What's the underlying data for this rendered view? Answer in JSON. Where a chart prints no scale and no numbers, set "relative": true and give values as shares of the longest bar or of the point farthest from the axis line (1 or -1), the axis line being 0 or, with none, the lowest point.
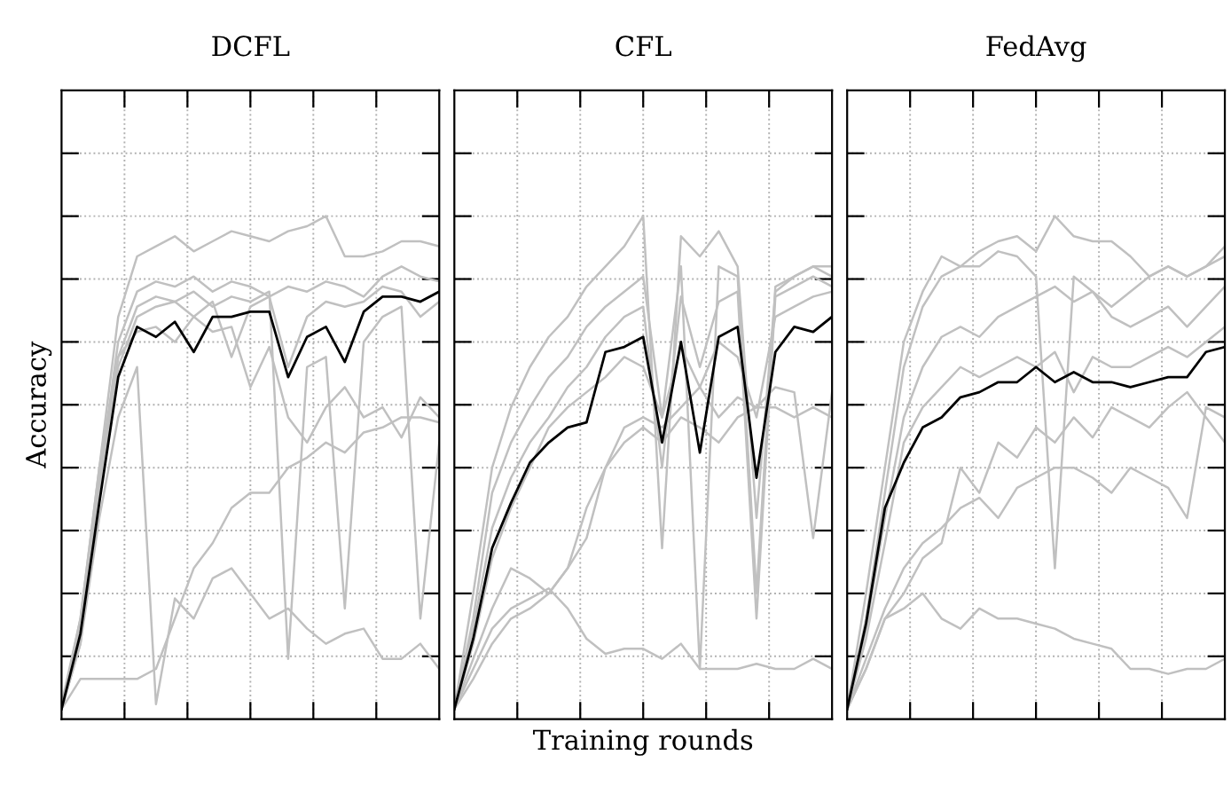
{
  "chart_data": [
    {
      "type": "line",
      "title": "DCFL",
      "ylabel": "Accuracy",
      "relative": true,
      "grid": true,
      "tick_labels": false,
      "line_style": "solid",
      "marker": "none",
      "categories": [
        null,
        null,
        null,
        null,
        null,
        null,
        null,
        null,
        null,
        null,
        null,
        null,
        null,
        null,
        null,
        null,
        null,
        null,
        null,
        null,
        null
      ],
      "series": [
        {
          "color": "#c0c0c0",
          "values": [
            0.02,
            0.2,
            0.5,
            0.8,
            0.92,
            0.94,
            0.96,
            0.93,
            0.95,
            0.97,
            0.96,
            0.95,
            0.97,
            0.98,
            1.0,
            0.92,
            0.92,
            0.93,
            0.95,
            0.95,
            0.94
          ]
        },
        {
          "color": "#c0c0c0",
          "values": [
            0.03,
            0.18,
            0.48,
            0.75,
            0.85,
            0.87,
            0.86,
            0.88,
            0.85,
            0.87,
            0.86,
            0.84,
            0.86,
            0.85,
            0.87,
            0.86,
            0.84,
            0.88,
            0.9,
            0.88,
            0.87
          ]
        },
        {
          "color": "#c0c0c0",
          "values": [
            0.02,
            0.15,
            0.45,
            0.7,
            0.8,
            0.82,
            0.83,
            0.8,
            0.83,
            0.72,
            0.82,
            0.84,
            0.7,
            0.8,
            0.83,
            0.82,
            0.83,
            0.86,
            0.85,
            0.8,
            0.83
          ]
        },
        {
          "color": "#c0c0c0",
          "values": [
            0.02,
            0.15,
            0.4,
            0.6,
            0.7,
            0.03,
            0.24,
            0.2,
            0.28,
            0.3,
            0.25,
            0.2,
            0.22,
            0.18,
            0.15,
            0.17,
            0.18,
            0.12,
            0.12,
            0.15,
            0.1
          ]
        },
        {
          "color": "#c0c0c0",
          "values": [
            0.02,
            0.08,
            0.08,
            0.08,
            0.08,
            0.1,
            0.2,
            0.3,
            0.35,
            0.42,
            0.45,
            0.45,
            0.5,
            0.52,
            0.55,
            0.53,
            0.57,
            0.58,
            0.6,
            0.6,
            0.59
          ]
        },
        {
          "color": "#c0c0c0",
          "values": [
            0.02,
            0.17,
            0.46,
            0.72,
            0.82,
            0.84,
            0.83,
            0.85,
            0.82,
            0.84,
            0.83,
            0.85,
            0.12,
            0.7,
            0.72,
            0.22,
            0.75,
            0.8,
            0.82,
            0.2,
            0.55
          ]
        },
        {
          "color": "#c0c0c0",
          "values": [
            0.03,
            0.2,
            0.5,
            0.72,
            0.77,
            0.78,
            0.75,
            0.8,
            0.77,
            0.78,
            0.66,
            0.74,
            0.6,
            0.55,
            0.62,
            0.66,
            0.6,
            0.62,
            0.56,
            0.64,
            0.6
          ]
        },
        {
          "color": "#000000",
          "values": [
            0.02,
            0.17,
            0.43,
            0.68,
            0.78,
            0.76,
            0.79,
            0.73,
            0.8,
            0.8,
            0.81,
            0.81,
            0.68,
            0.76,
            0.78,
            0.71,
            0.81,
            0.84,
            0.84,
            0.83,
            0.85
          ]
        }
      ]
    },
    {
      "type": "line",
      "title": "CFL",
      "xlabel": "Training rounds",
      "relative": true,
      "grid": true,
      "tick_labels": false,
      "line_style": "solid",
      "marker": "none",
      "categories": [
        null,
        null,
        null,
        null,
        null,
        null,
        null,
        null,
        null,
        null,
        null,
        null,
        null,
        null,
        null,
        null,
        null,
        null,
        null,
        null,
        null
      ],
      "series": [
        {
          "color": "#c0c0c0",
          "values": [
            0.02,
            0.25,
            0.5,
            0.62,
            0.7,
            0.76,
            0.8,
            0.86,
            0.9,
            0.94,
            1.0,
            0.34,
            0.96,
            0.92,
            0.97,
            0.9,
            0.4,
            0.85,
            0.88,
            0.9,
            0.9
          ]
        },
        {
          "color": "#c0c0c0",
          "values": [
            0.02,
            0.2,
            0.45,
            0.55,
            0.62,
            0.68,
            0.72,
            0.78,
            0.82,
            0.85,
            0.88,
            0.6,
            0.9,
            0.1,
            0.9,
            0.88,
            0.25,
            0.86,
            0.88,
            0.9,
            0.88
          ]
        },
        {
          "color": "#c0c0c0",
          "values": [
            0.03,
            0.18,
            0.38,
            0.48,
            0.55,
            0.6,
            0.66,
            0.7,
            0.76,
            0.8,
            0.82,
            0.5,
            0.84,
            0.7,
            0.83,
            0.85,
            0.2,
            0.84,
            0.86,
            0.88,
            0.86
          ]
        },
        {
          "color": "#c0c0c0",
          "values": [
            0.02,
            0.1,
            0.18,
            0.22,
            0.24,
            0.26,
            0.22,
            0.16,
            0.13,
            0.14,
            0.14,
            0.12,
            0.15,
            0.1,
            0.1,
            0.1,
            0.11,
            0.1,
            0.1,
            0.12,
            0.1
          ]
        },
        {
          "color": "#c0c0c0",
          "values": [
            0.02,
            0.08,
            0.15,
            0.2,
            0.22,
            0.25,
            0.3,
            0.36,
            0.5,
            0.55,
            0.58,
            0.55,
            0.6,
            0.58,
            0.55,
            0.6,
            0.62,
            0.62,
            0.6,
            0.62,
            0.6
          ]
        },
        {
          "color": "#c0c0c0",
          "values": [
            0.02,
            0.12,
            0.22,
            0.3,
            0.28,
            0.25,
            0.3,
            0.42,
            0.5,
            0.58,
            0.6,
            0.58,
            0.62,
            0.66,
            0.6,
            0.64,
            0.62,
            0.66,
            0.65,
            0.36,
            0.65
          ]
        },
        {
          "color": "#c0c0c0",
          "values": [
            0.02,
            0.15,
            0.32,
            0.42,
            0.5,
            0.58,
            0.62,
            0.65,
            0.68,
            0.72,
            0.7,
            0.6,
            0.74,
            0.66,
            0.75,
            0.72,
            0.6,
            0.8,
            0.82,
            0.84,
            0.85
          ]
        },
        {
          "color": "#000000",
          "values": [
            0.02,
            0.16,
            0.34,
            0.43,
            0.51,
            0.55,
            0.58,
            0.59,
            0.73,
            0.74,
            0.76,
            0.55,
            0.75,
            0.53,
            0.76,
            0.78,
            0.48,
            0.73,
            0.78,
            0.77,
            0.8
          ]
        }
      ]
    },
    {
      "type": "line",
      "title": "FedAvg",
      "relative": true,
      "grid": true,
      "tick_labels": false,
      "line_style": "solid",
      "marker": "none",
      "categories": [
        null,
        null,
        null,
        null,
        null,
        null,
        null,
        null,
        null,
        null,
        null,
        null,
        null,
        null,
        null,
        null,
        null,
        null,
        null,
        null,
        null
      ],
      "series": [
        {
          "color": "#c0c0c0",
          "values": [
            0.02,
            0.25,
            0.5,
            0.75,
            0.85,
            0.92,
            0.9,
            0.93,
            0.95,
            0.96,
            0.93,
            1.0,
            0.96,
            0.95,
            0.95,
            0.92,
            0.88,
            0.9,
            0.88,
            0.9,
            0.92
          ]
        },
        {
          "color": "#c0c0c0",
          "values": [
            0.02,
            0.2,
            0.45,
            0.7,
            0.82,
            0.88,
            0.9,
            0.9,
            0.93,
            0.92,
            0.88,
            0.3,
            0.88,
            0.85,
            0.82,
            0.85,
            0.88,
            0.9,
            0.88,
            0.9,
            0.94
          ]
        },
        {
          "color": "#c0c0c0",
          "values": [
            0.02,
            0.18,
            0.4,
            0.6,
            0.7,
            0.76,
            0.78,
            0.76,
            0.8,
            0.82,
            0.84,
            0.86,
            0.83,
            0.85,
            0.8,
            0.78,
            0.8,
            0.82,
            0.78,
            0.82,
            0.86
          ]
        },
        {
          "color": "#c0c0c0",
          "values": [
            0.02,
            0.16,
            0.35,
            0.55,
            0.62,
            0.66,
            0.7,
            0.68,
            0.7,
            0.72,
            0.7,
            0.73,
            0.65,
            0.72,
            0.7,
            0.7,
            0.72,
            0.74,
            0.72,
            0.75,
            0.78
          ]
        },
        {
          "color": "#c0c0c0",
          "values": [
            0.02,
            0.1,
            0.2,
            0.25,
            0.32,
            0.35,
            0.5,
            0.45,
            0.55,
            0.52,
            0.58,
            0.55,
            0.6,
            0.56,
            0.62,
            0.6,
            0.58,
            0.62,
            0.65,
            0.6,
            0.55
          ]
        },
        {
          "color": "#c0c0c0",
          "values": [
            0.02,
            0.12,
            0.22,
            0.3,
            0.35,
            0.38,
            0.42,
            0.44,
            0.4,
            0.46,
            0.48,
            0.5,
            0.5,
            0.48,
            0.45,
            0.5,
            0.48,
            0.46,
            0.4,
            0.62,
            0.6
          ]
        },
        {
          "color": "#c0c0c0",
          "values": [
            0.02,
            0.1,
            0.2,
            0.22,
            0.25,
            0.2,
            0.18,
            0.22,
            0.2,
            0.2,
            0.19,
            0.18,
            0.16,
            0.15,
            0.14,
            0.1,
            0.1,
            0.09,
            0.1,
            0.1,
            0.12
          ]
        },
        {
          "color": "#000000",
          "values": [
            0.02,
            0.19,
            0.42,
            0.51,
            0.58,
            0.6,
            0.64,
            0.65,
            0.67,
            0.67,
            0.7,
            0.67,
            0.69,
            0.67,
            0.67,
            0.66,
            0.67,
            0.68,
            0.68,
            0.73,
            0.74
          ]
        }
      ]
    }
  ]
}
